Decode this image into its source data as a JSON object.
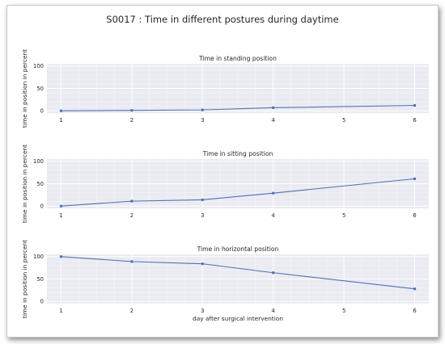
{
  "figure": {
    "title": "S0017 :  Time in different postures during daytime"
  },
  "chart_data": [
    {
      "type": "line",
      "title": "Time in standing position",
      "xlabel": "",
      "ylabel": "time in position in percent",
      "x_ticks": [
        1,
        2,
        3,
        4,
        5,
        6
      ],
      "y_ticks": [
        0,
        50,
        100
      ],
      "xlim": [
        0.8,
        6.2
      ],
      "ylim": [
        -5,
        105
      ],
      "grid": true,
      "series": [
        {
          "x": [
            1,
            2,
            3,
            4,
            6
          ],
          "y": [
            0,
            1,
            2,
            7,
            12
          ]
        }
      ]
    },
    {
      "type": "line",
      "title": "Time in sitting position",
      "xlabel": "",
      "ylabel": "time in position in percent",
      "x_ticks": [
        1,
        2,
        3,
        4,
        5,
        6
      ],
      "y_ticks": [
        0,
        50,
        100
      ],
      "xlim": [
        0.8,
        6.2
      ],
      "ylim": [
        -5,
        105
      ],
      "grid": true,
      "series": [
        {
          "x": [
            1,
            2,
            3,
            4,
            6
          ],
          "y": [
            0,
            11,
            14,
            29,
            61
          ]
        }
      ]
    },
    {
      "type": "line",
      "title": "Time in horizontal position",
      "xlabel": "day after surgical intervention",
      "ylabel": "time in position in percent",
      "x_ticks": [
        1,
        2,
        3,
        4,
        5,
        6
      ],
      "y_ticks": [
        0,
        50,
        100
      ],
      "xlim": [
        0.8,
        6.2
      ],
      "ylim": [
        -5,
        105
      ],
      "grid": true,
      "series": [
        {
          "x": [
            1,
            2,
            3,
            4,
            6
          ],
          "y": [
            100,
            89,
            84,
            64,
            28
          ]
        }
      ]
    }
  ],
  "colors": {
    "line": "#4c72b0",
    "plot_background": "#eaeaf2",
    "grid": "#ffffff"
  }
}
